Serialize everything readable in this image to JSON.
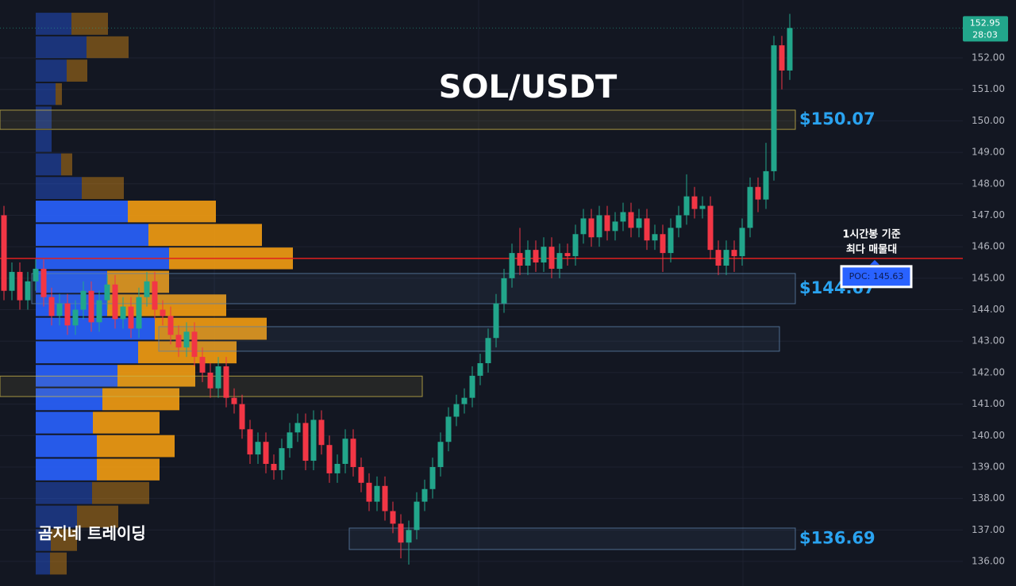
{
  "chart_data": {
    "type": "candlestick",
    "title": "SOL/USDT",
    "watermark": "곰지네 트레이딩",
    "up_color": "#22a68b",
    "down_color": "#f23645",
    "ylim": [
      135.22,
      153.84
    ],
    "yticks": [
      {
        "value": 136,
        "label": "136.00"
      },
      {
        "value": 137,
        "label": "137.00"
      },
      {
        "value": 138,
        "label": "138.00"
      },
      {
        "value": 139,
        "label": "139.00"
      },
      {
        "value": 140,
        "label": "140.00"
      },
      {
        "value": 141,
        "label": "141.00"
      },
      {
        "value": 142,
        "label": "142.00"
      },
      {
        "value": 143,
        "label": "143.00"
      },
      {
        "value": 144,
        "label": "144.00"
      },
      {
        "value": 145,
        "label": "145.00"
      },
      {
        "value": 146,
        "label": "146.00"
      },
      {
        "value": 147,
        "label": "147.00"
      },
      {
        "value": 148,
        "label": "148.00"
      },
      {
        "value": 149,
        "label": "149.00"
      },
      {
        "value": 150,
        "label": "150.00"
      },
      {
        "value": 151,
        "label": "151.00"
      },
      {
        "value": 152,
        "label": "152.00"
      }
    ],
    "grid": true,
    "timer": "28:03",
    "candles": [
      [
        147.0,
        147.3,
        144.3,
        144.6
      ],
      [
        144.6,
        145.5,
        144.3,
        145.2
      ],
      [
        145.2,
        145.5,
        144.0,
        144.3
      ],
      [
        144.3,
        145.2,
        144.0,
        144.9
      ],
      [
        144.9,
        145.6,
        144.6,
        145.3
      ],
      [
        145.3,
        145.6,
        144.1,
        144.4
      ],
      [
        144.4,
        144.7,
        143.5,
        143.8
      ],
      [
        143.8,
        144.5,
        143.5,
        144.2
      ],
      [
        144.2,
        144.5,
        143.2,
        143.5
      ],
      [
        143.5,
        144.3,
        143.2,
        144.0
      ],
      [
        144.0,
        144.9,
        143.7,
        144.6
      ],
      [
        144.6,
        144.9,
        143.3,
        143.6
      ],
      [
        143.6,
        144.6,
        143.3,
        144.3
      ],
      [
        144.3,
        145.1,
        144.0,
        144.8
      ],
      [
        144.8,
        145.1,
        143.4,
        143.7
      ],
      [
        143.7,
        144.4,
        143.4,
        144.1
      ],
      [
        144.1,
        144.4,
        143.1,
        143.4
      ],
      [
        143.4,
        144.7,
        143.1,
        144.4
      ],
      [
        144.4,
        145.2,
        144.1,
        144.9
      ],
      [
        144.9,
        145.2,
        143.7,
        144.0
      ],
      [
        144.0,
        144.3,
        143.5,
        143.8
      ],
      [
        143.8,
        144.1,
        142.9,
        143.2
      ],
      [
        143.2,
        143.5,
        142.5,
        142.8
      ],
      [
        142.8,
        143.6,
        142.5,
        143.3
      ],
      [
        143.3,
        143.6,
        142.2,
        142.5
      ],
      [
        142.5,
        142.8,
        141.7,
        142.0
      ],
      [
        142.0,
        142.3,
        141.2,
        141.5
      ],
      [
        141.5,
        142.5,
        141.2,
        142.2
      ],
      [
        142.2,
        142.5,
        140.9,
        141.2
      ],
      [
        141.2,
        141.5,
        140.7,
        141.0
      ],
      [
        141.0,
        141.3,
        139.9,
        140.2
      ],
      [
        140.2,
        140.5,
        139.1,
        139.4
      ],
      [
        139.4,
        140.1,
        139.1,
        139.8
      ],
      [
        139.8,
        140.1,
        138.8,
        139.1
      ],
      [
        139.1,
        139.4,
        138.6,
        138.9
      ],
      [
        138.9,
        139.9,
        138.6,
        139.6
      ],
      [
        139.6,
        140.4,
        139.3,
        140.1
      ],
      [
        140.1,
        140.7,
        139.8,
        140.4
      ],
      [
        140.4,
        140.7,
        138.9,
        139.2
      ],
      [
        139.2,
        140.8,
        138.9,
        140.5
      ],
      [
        140.5,
        140.8,
        139.4,
        139.7
      ],
      [
        139.7,
        140.0,
        138.5,
        138.8
      ],
      [
        138.8,
        139.4,
        138.5,
        139.1
      ],
      [
        139.1,
        140.2,
        138.8,
        139.9
      ],
      [
        139.9,
        140.2,
        138.7,
        139.0
      ],
      [
        139.0,
        139.3,
        138.2,
        138.5
      ],
      [
        138.5,
        138.8,
        137.6,
        137.9
      ],
      [
        137.9,
        138.7,
        137.6,
        138.4
      ],
      [
        138.4,
        138.7,
        137.3,
        137.6
      ],
      [
        137.6,
        137.9,
        136.9,
        137.2
      ],
      [
        137.2,
        137.5,
        136.1,
        136.6
      ],
      [
        136.6,
        137.3,
        135.9,
        137.0
      ],
      [
        137.0,
        138.2,
        136.7,
        137.9
      ],
      [
        137.9,
        138.6,
        137.6,
        138.3
      ],
      [
        138.3,
        139.3,
        138.0,
        139.0
      ],
      [
        139.0,
        140.1,
        138.7,
        139.8
      ],
      [
        139.8,
        140.9,
        139.5,
        140.6
      ],
      [
        140.6,
        141.3,
        140.3,
        141.0
      ],
      [
        141.0,
        141.5,
        140.7,
        141.2
      ],
      [
        141.2,
        142.2,
        140.9,
        141.9
      ],
      [
        141.9,
        142.6,
        141.6,
        142.3
      ],
      [
        142.3,
        143.4,
        142.0,
        143.1
      ],
      [
        143.1,
        144.5,
        142.8,
        144.2
      ],
      [
        144.2,
        145.3,
        143.9,
        145.0
      ],
      [
        145.0,
        146.1,
        144.7,
        145.8
      ],
      [
        145.8,
        146.6,
        145.1,
        145.4
      ],
      [
        145.4,
        146.2,
        145.1,
        145.9
      ],
      [
        145.9,
        146.2,
        145.2,
        145.5
      ],
      [
        145.5,
        146.3,
        145.2,
        146.0
      ],
      [
        146.0,
        146.3,
        145.0,
        145.3
      ],
      [
        145.3,
        146.1,
        145.0,
        145.8
      ],
      [
        145.8,
        146.1,
        145.4,
        145.7
      ],
      [
        145.7,
        146.7,
        145.4,
        146.4
      ],
      [
        146.4,
        147.2,
        146.1,
        146.9
      ],
      [
        146.9,
        147.2,
        146.0,
        146.3
      ],
      [
        146.3,
        147.3,
        146.0,
        147.0
      ],
      [
        147.0,
        147.3,
        146.2,
        146.5
      ],
      [
        146.5,
        147.1,
        146.2,
        146.8
      ],
      [
        146.8,
        147.4,
        146.5,
        147.1
      ],
      [
        147.1,
        147.4,
        146.3,
        146.6
      ],
      [
        146.6,
        147.2,
        146.3,
        146.9
      ],
      [
        146.9,
        147.2,
        145.9,
        146.2
      ],
      [
        146.2,
        146.7,
        145.9,
        146.4
      ],
      [
        146.4,
        146.7,
        145.2,
        145.8
      ],
      [
        145.8,
        146.9,
        145.5,
        146.6
      ],
      [
        146.6,
        147.3,
        146.3,
        147.0
      ],
      [
        147.0,
        148.3,
        146.7,
        147.6
      ],
      [
        147.6,
        147.9,
        146.9,
        147.2
      ],
      [
        147.2,
        147.6,
        146.9,
        147.3
      ],
      [
        147.3,
        147.6,
        145.6,
        145.9
      ],
      [
        145.9,
        146.2,
        145.1,
        145.4
      ],
      [
        145.4,
        146.2,
        145.1,
        145.9
      ],
      [
        145.9,
        146.2,
        145.2,
        145.7
      ],
      [
        145.7,
        146.9,
        145.4,
        146.6
      ],
      [
        146.6,
        148.2,
        146.3,
        147.9
      ],
      [
        147.9,
        148.2,
        147.1,
        147.5
      ],
      [
        147.5,
        149.3,
        147.2,
        148.4
      ],
      [
        148.4,
        152.7,
        148.1,
        152.4
      ],
      [
        152.4,
        152.7,
        151.0,
        151.6
      ],
      [
        151.6,
        153.4,
        151.3,
        152.95
      ]
    ],
    "volume_profile": {
      "bins": [
        153.46,
        152.71,
        151.97,
        151.22,
        150.48,
        149.73,
        148.99,
        148.24,
        147.49,
        146.75,
        146.0,
        145.26,
        144.51,
        143.77,
        143.02,
        142.27,
        141.53,
        140.78,
        140.04,
        139.29,
        138.55,
        137.8,
        137.05,
        136.31,
        135.56
      ],
      "buy": [
        45,
        64,
        39,
        25,
        20,
        20,
        32,
        58,
        116,
        142,
        168,
        90,
        90,
        150,
        129,
        103,
        84,
        72,
        77,
        77,
        71,
        52,
        19,
        18
      ],
      "sell": [
        46,
        53,
        26,
        8,
        0,
        0,
        14,
        53,
        111,
        143,
        156,
        78,
        150,
        141,
        124,
        98,
        97,
        84,
        98,
        79,
        72,
        52,
        33,
        21
      ],
      "buy_color": "#2962ff",
      "sell_color": "#f39c12",
      "value_area": [
        138.55,
        147.49
      ]
    },
    "zones": [
      {
        "top": 150.34,
        "bottom": 149.73,
        "start": 0,
        "end": 99,
        "color": "#c9b44a",
        "label": "$150.07"
      },
      {
        "top": 145.15,
        "bottom": 144.19,
        "start": 4,
        "end": 99,
        "color": "#5b7fa8",
        "label": "$144.67"
      },
      {
        "top": 143.46,
        "bottom": 142.68,
        "start": 20,
        "end": 97,
        "color": "#5b7fa8"
      },
      {
        "top": 141.89,
        "bottom": 141.24,
        "start": 0,
        "end": 52,
        "color": "#c9b44a"
      },
      {
        "top": 137.06,
        "bottom": 136.38,
        "start": 44,
        "end": 99,
        "color": "#5b7fa8",
        "label": "$136.69"
      }
    ],
    "poc": {
      "value": 145.63,
      "label": "POC: 145.63",
      "color": "#e0201f"
    },
    "annotation": [
      "1시간봉 기준",
      "최다 매물대"
    ]
  }
}
